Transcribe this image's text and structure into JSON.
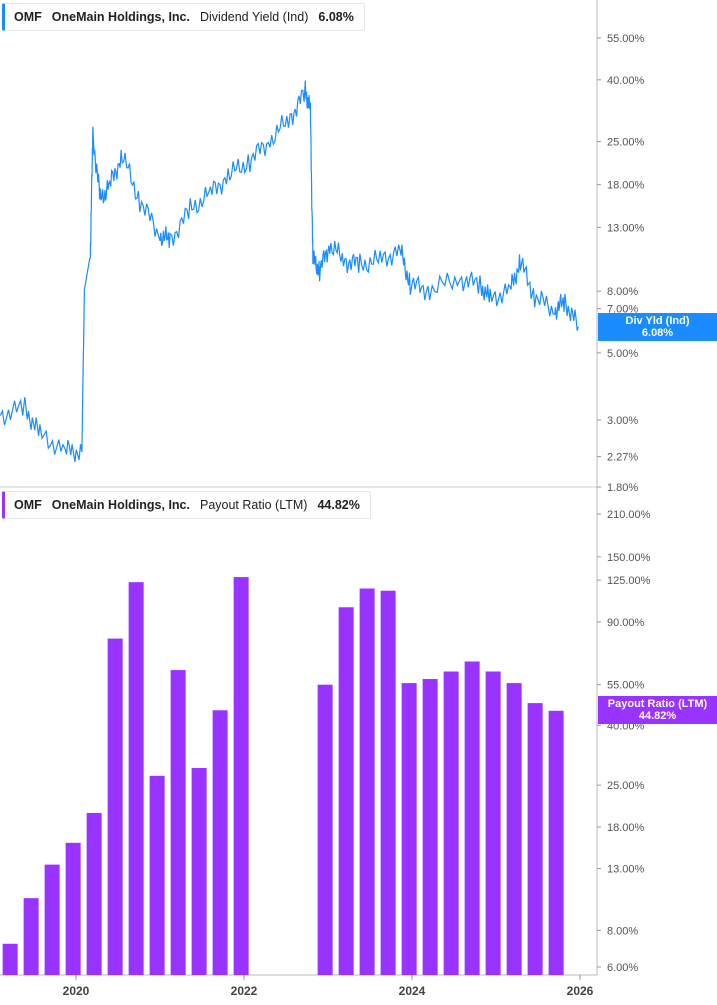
{
  "chart_data": [
    {
      "type": "line",
      "ticker": "OMF",
      "company": "OneMain Holdings, Inc.",
      "metric": "Dividend Yield (Ind)",
      "current_value": "6.08%",
      "tag_label": "Div Yld (Ind)",
      "color": "#1a8cff",
      "scale": "log",
      "ylim": [
        1.8,
        55
      ],
      "yticks": [
        "55.00%",
        "40.00%",
        "25.00%",
        "18.00%",
        "13.00%",
        "8.00%",
        "7.00%",
        "5.00%",
        "3.00%",
        "2.27%",
        "1.80%"
      ],
      "ytick_values": [
        55,
        40,
        25,
        18,
        13,
        8,
        7,
        5,
        3,
        2.27,
        1.8
      ],
      "x": [
        2019.1,
        2019.39,
        2019.57,
        2019.87,
        2020.07,
        2020.1,
        2020.17,
        2020.2,
        2020.29,
        2020.4,
        2020.55,
        2020.76,
        2021.0,
        2021.12,
        2021.36,
        2021.6,
        2021.83,
        2022.07,
        2022.31,
        2022.55,
        2022.73,
        2022.79,
        2022.82,
        2022.9,
        2023.02,
        2023.2,
        2023.38,
        2023.62,
        2023.86,
        2023.98,
        2024.21,
        2024.57,
        2024.81,
        2024.93,
        2025.17,
        2025.29,
        2025.46,
        2025.7,
        2025.82,
        2025.98
      ],
      "y": [
        3.1,
        3.3,
        2.67,
        2.38,
        2.35,
        8.1,
        10.5,
        26.2,
        16,
        17.9,
        22.5,
        16,
        12.2,
        11.8,
        14.8,
        16.9,
        19.4,
        21.7,
        25.3,
        29.9,
        36.4,
        31.6,
        10.1,
        9.4,
        11.4,
        10.1,
        9.8,
        10.1,
        10.9,
        8.4,
        8.1,
        8.8,
        8.4,
        7.5,
        8.1,
        10,
        7.7,
        6.9,
        7.4,
        6.1
      ]
    },
    {
      "type": "bar",
      "ticker": "OMF",
      "company": "OneMain Holdings, Inc.",
      "metric": "Payout Ratio (LTM)",
      "current_value": "44.82%",
      "tag_label": "Payout Ratio (LTM)",
      "color": "#9933ff",
      "scale": "log",
      "ylim": [
        6,
        210
      ],
      "yticks": [
        "210.00%",
        "150.00%",
        "125.00%",
        "90.00%",
        "55.00%",
        "40.00%",
        "25.00%",
        "18.00%",
        "13.00%",
        "8.00%",
        "6.00%"
      ],
      "ytick_values": [
        210,
        150,
        125,
        90,
        55,
        40,
        25,
        18,
        13,
        8,
        6
      ],
      "x": [
        2019.21,
        2019.46,
        2019.71,
        2019.96,
        2020.21,
        2020.46,
        2020.71,
        2020.96,
        2021.21,
        2021.46,
        2021.71,
        2021.96,
        2022.96,
        2023.21,
        2023.46,
        2023.71,
        2023.96,
        2024.21,
        2024.46,
        2024.71,
        2024.96,
        2025.21,
        2025.46,
        2025.71
      ],
      "values": [
        7.2,
        10.3,
        13.4,
        15.9,
        20.1,
        79,
        123,
        26.9,
        61.7,
        28.6,
        45,
        128,
        55,
        101,
        117,
        115,
        55.7,
        57.5,
        61,
        66,
        61,
        55.7,
        47.6,
        44.82
      ]
    }
  ],
  "xaxis": {
    "ticks": [
      "2020",
      "2022",
      "2024",
      "2026"
    ],
    "tick_values": [
      2020,
      2022,
      2024,
      2026
    ]
  }
}
